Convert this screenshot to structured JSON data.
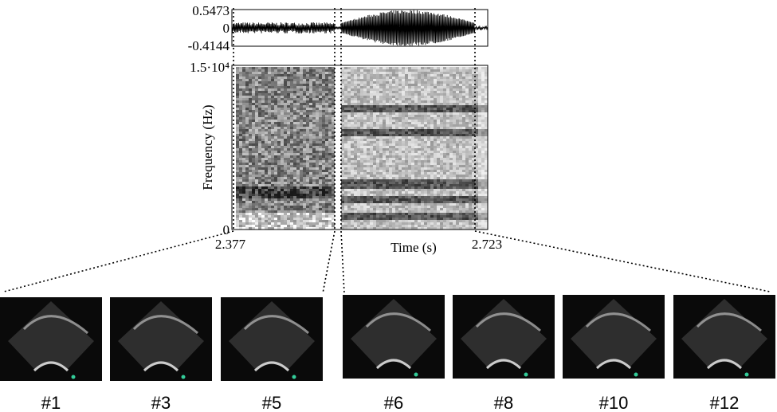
{
  "waveform": {
    "yticks": [
      "0.5473",
      "0",
      "-0.4144"
    ]
  },
  "spectrogram": {
    "ylabel": "Frequency (Hz)",
    "xlabel": "Time (s)",
    "yticks": [
      "1.5·10⁴",
      "0"
    ],
    "xticks": [
      "2.377",
      "2.723"
    ]
  },
  "frames": [
    {
      "label": "#1"
    },
    {
      "label": "#3"
    },
    {
      "label": "#5"
    },
    {
      "label": "#6"
    },
    {
      "label": "#8"
    },
    {
      "label": "#10"
    },
    {
      "label": "#12"
    }
  ]
}
